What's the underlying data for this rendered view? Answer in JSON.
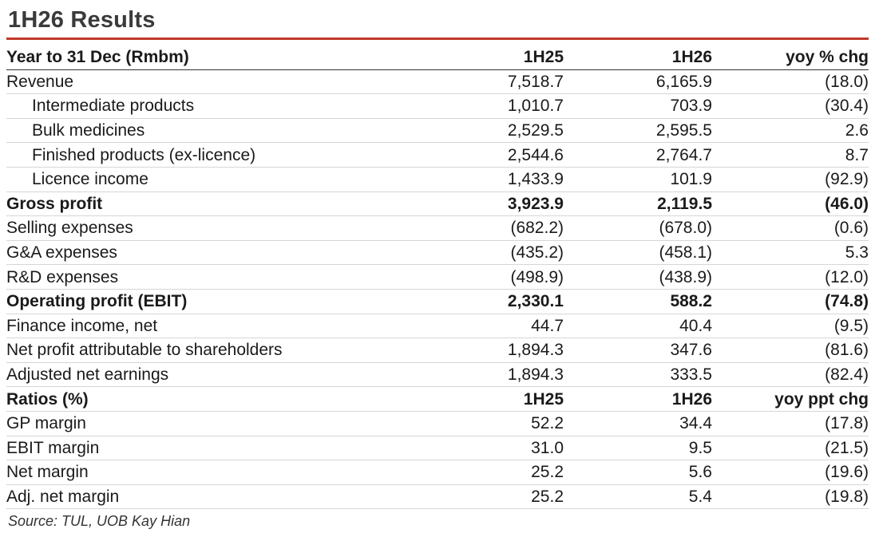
{
  "title": "1H26 Results",
  "header": {
    "label": "Year to 31 Dec (Rmbm)",
    "col1": "1H25",
    "col2": "1H26",
    "col3": "yoy % chg"
  },
  "rows": [
    {
      "label": "Revenue",
      "v1": "7,518.7",
      "v2": "6,165.9",
      "v3": "(18.0)"
    },
    {
      "label": "Intermediate products",
      "v1": "1,010.7",
      "v2": "703.9",
      "v3": "(30.4)"
    },
    {
      "label": "Bulk medicines",
      "v1": "2,529.5",
      "v2": "2,595.5",
      "v3": "2.6"
    },
    {
      "label": "Finished products (ex-licence)",
      "v1": "2,544.6",
      "v2": "2,764.7",
      "v3": "8.7"
    },
    {
      "label": "Licence income",
      "v1": "1,433.9",
      "v2": "101.9",
      "v3": "(92.9)"
    },
    {
      "label": "Gross profit",
      "v1": "3,923.9",
      "v2": "2,119.5",
      "v3": "(46.0)"
    },
    {
      "label": "Selling expenses",
      "v1": "(682.2)",
      "v2": "(678.0)",
      "v3": "(0.6)"
    },
    {
      "label": "G&A expenses",
      "v1": "(435.2)",
      "v2": "(458.1)",
      "v3": "5.3"
    },
    {
      "label": "R&D expenses",
      "v1": "(498.9)",
      "v2": "(438.9)",
      "v3": "(12.0)"
    },
    {
      "label": "Operating profit (EBIT)",
      "v1": "2,330.1",
      "v2": "588.2",
      "v3": "(74.8)"
    },
    {
      "label": "Finance income, net",
      "v1": "44.7",
      "v2": "40.4",
      "v3": "(9.5)"
    },
    {
      "label": "Net profit attributable to shareholders",
      "v1": "1,894.3",
      "v2": "347.6",
      "v3": "(81.6)"
    },
    {
      "label": "Adjusted net earnings",
      "v1": "1,894.3",
      "v2": "333.5",
      "v3": "(82.4)"
    }
  ],
  "ratios_header": {
    "label": "Ratios (%)",
    "col1": "1H25",
    "col2": "1H26",
    "col3": "yoy ppt chg"
  },
  "ratios": [
    {
      "label": "GP margin",
      "v1": "52.2",
      "v2": "34.4",
      "v3": "(17.8)"
    },
    {
      "label": "EBIT margin",
      "v1": "31.0",
      "v2": "9.5",
      "v3": "(21.5)"
    },
    {
      "label": "Net margin",
      "v1": "25.2",
      "v2": "5.6",
      "v3": "(19.6)"
    },
    {
      "label": "Adj. net margin",
      "v1": "25.2",
      "v2": "5.4",
      "v3": "(19.8)"
    }
  ],
  "source": "Source: TUL, UOB Kay Hian"
}
